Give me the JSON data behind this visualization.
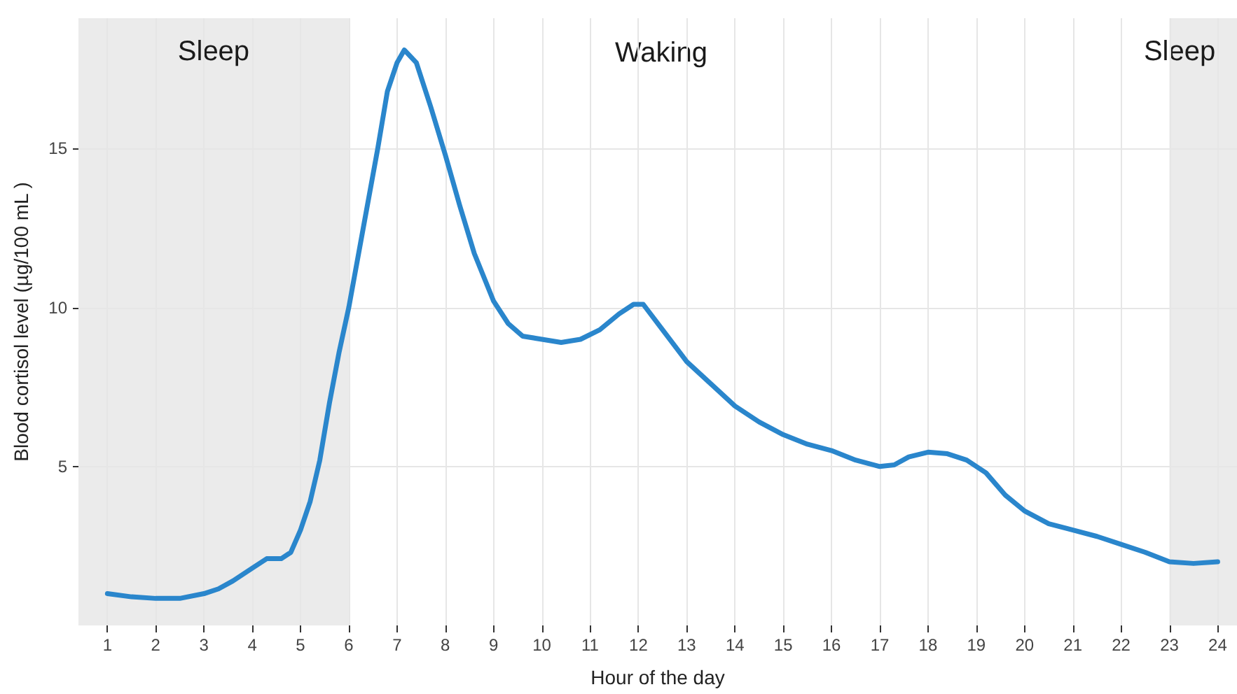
{
  "chart_data": {
    "type": "line",
    "xlabel": "Hour of the day",
    "ylabel": "Blood cortisol level (µg/100 mL )",
    "x": [
      1,
      1.5,
      2,
      2.5,
      3,
      3.3,
      3.6,
      4,
      4.3,
      4.6,
      4.8,
      5,
      5.2,
      5.4,
      5.6,
      5.8,
      6,
      6.3,
      6.6,
      6.8,
      7,
      7.15,
      7.4,
      7.7,
      8,
      8.3,
      8.6,
      9,
      9.3,
      9.6,
      10,
      10.4,
      10.8,
      11.2,
      11.6,
      11.9,
      12.1,
      12.5,
      13,
      13.5,
      14,
      14.5,
      15,
      15.5,
      16,
      16.5,
      17,
      17.3,
      17.6,
      18,
      18.4,
      18.8,
      19.2,
      19.6,
      20,
      20.5,
      21,
      21.5,
      22,
      22.5,
      23,
      23.5,
      24
    ],
    "series": [
      {
        "color": "#2a86cc",
        "values": [
          1.0,
          0.9,
          0.85,
          0.85,
          1.0,
          1.15,
          1.4,
          1.8,
          2.1,
          2.1,
          2.3,
          3.0,
          3.9,
          5.2,
          7.0,
          8.6,
          10.0,
          12.5,
          15.0,
          16.8,
          17.7,
          18.1,
          17.7,
          16.3,
          14.8,
          13.2,
          11.7,
          10.2,
          9.5,
          9.1,
          9.0,
          8.9,
          9.0,
          9.3,
          9.8,
          10.1,
          10.1,
          9.3,
          8.3,
          7.6,
          6.9,
          6.4,
          6.0,
          5.7,
          5.5,
          5.2,
          5.0,
          5.05,
          5.3,
          5.45,
          5.4,
          5.2,
          4.8,
          4.1,
          3.6,
          3.2,
          3.0,
          2.8,
          2.55,
          2.3,
          2.0,
          1.95,
          2.0
        ]
      }
    ],
    "xlim": [
      0.4,
      24.4
    ],
    "xticks": [
      1,
      2,
      3,
      4,
      5,
      6,
      7,
      8,
      9,
      10,
      11,
      12,
      13,
      14,
      15,
      16,
      17,
      18,
      19,
      20,
      21,
      22,
      23,
      24
    ],
    "ylim": [
      0,
      19.1
    ],
    "yticks": [
      5,
      10,
      15
    ],
    "bands": [
      {
        "axis": "x",
        "from": 0.4,
        "to": 6,
        "label": "Sleep",
        "color": "#ebebeb"
      },
      {
        "axis": "x",
        "from": 23,
        "to": 24.4,
        "label": "Sleep",
        "color": "#ebebeb"
      }
    ],
    "annotations": [
      "Waking"
    ],
    "grid": true,
    "marker": "none",
    "line_style": "solid"
  }
}
